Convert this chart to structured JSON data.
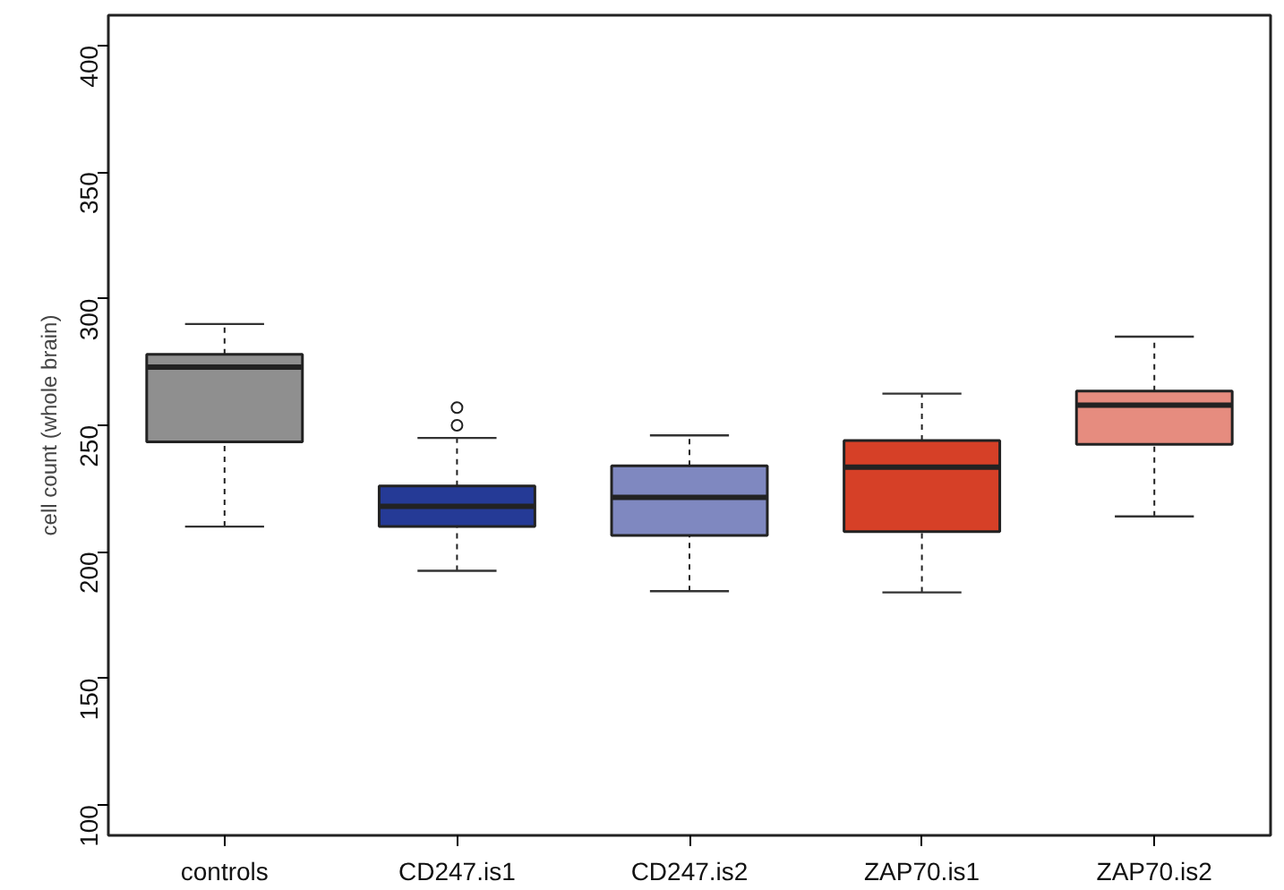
{
  "chart_data": {
    "type": "box",
    "ylabel": "cell count (whole brain)",
    "categories": [
      "controls",
      "CD247.is1",
      "CD247.is2",
      "ZAP70.is1",
      "ZAP70.is2"
    ],
    "colors": [
      "#8f8f8f",
      "#253a96",
      "#7f88c0",
      "#d64027",
      "#e68c7f"
    ],
    "boxes": [
      {
        "low": 210,
        "q1": 243.5,
        "median": 273,
        "q3": 278,
        "high": 290
      },
      {
        "low": 192.5,
        "q1": 210,
        "median": 218,
        "q3": 226,
        "high": 245,
        "outliers": [
          250,
          257
        ]
      },
      {
        "low": 184.5,
        "q1": 206.5,
        "median": 221.5,
        "q3": 234,
        "high": 246
      },
      {
        "low": 184,
        "q1": 208,
        "median": 233.5,
        "q3": 244,
        "high": 262.5
      },
      {
        "low": 214,
        "q1": 242.5,
        "median": 258,
        "q3": 263.5,
        "high": 285
      }
    ],
    "ylim": [
      88,
      412
    ],
    "yticks": [
      100,
      150,
      200,
      250,
      300,
      350,
      400
    ]
  }
}
